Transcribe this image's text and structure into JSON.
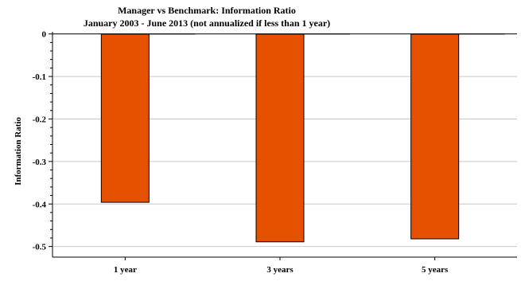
{
  "chart_data": {
    "type": "bar",
    "title": "Manager vs Benchmark: Information Ratio",
    "subtitle": "January 2003 - June 2013 (not annualized if less than 1 year)",
    "xlabel": "",
    "ylabel": "Information Ratio",
    "categories": [
      "1 year",
      "3 years",
      "5 years"
    ],
    "series": [
      {
        "values": [
          -0.396,
          -0.489,
          -0.482
        ]
      }
    ],
    "ylim": [
      -0.525,
      0.005
    ],
    "yticks": [
      0,
      -0.1,
      -0.2,
      -0.3,
      -0.4,
      -0.5
    ],
    "ytick_labels": [
      "0",
      "-0.1",
      "-0.2",
      "-0.3",
      "-0.4",
      "-0.5"
    ],
    "grid": true,
    "legend": "none",
    "colors": {
      "bar": "#E65100",
      "bar_stroke": "#000000",
      "grid": "#c8c8c8"
    }
  }
}
